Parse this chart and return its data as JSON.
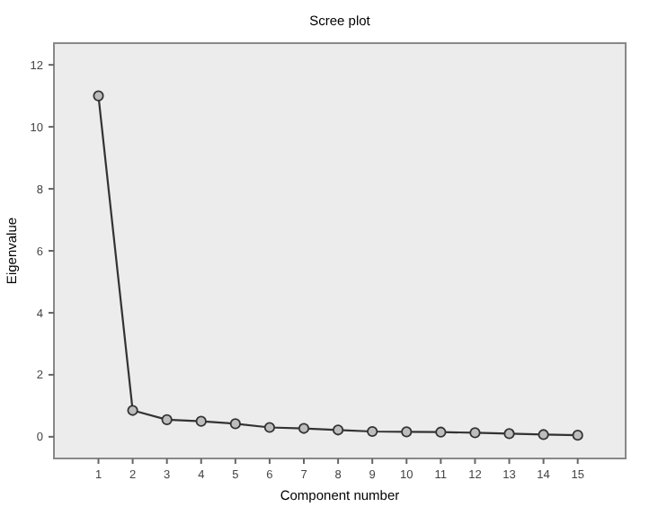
{
  "chart_data": {
    "type": "line",
    "title": "Scree plot",
    "xlabel": "Component number",
    "ylabel": "Eigenvalue",
    "x": [
      1,
      2,
      3,
      4,
      5,
      6,
      7,
      8,
      9,
      10,
      11,
      12,
      13,
      14,
      15
    ],
    "series": [
      {
        "color": "#333333",
        "values": [
          11.0,
          0.85,
          0.55,
          0.5,
          0.42,
          0.3,
          0.27,
          0.22,
          0.17,
          0.16,
          0.15,
          0.13,
          0.1,
          0.07,
          0.05
        ]
      }
    ],
    "xlim": [
      -0.3,
      16.4
    ],
    "xticks": [
      1,
      2,
      3,
      4,
      5,
      6,
      7,
      8,
      9,
      10,
      11,
      12,
      13,
      14,
      15
    ],
    "ylim": [
      -0.7,
      12.7
    ],
    "yticks": [
      0,
      2,
      4,
      6,
      8,
      10,
      12
    ],
    "marker": "circle",
    "grid": false
  }
}
